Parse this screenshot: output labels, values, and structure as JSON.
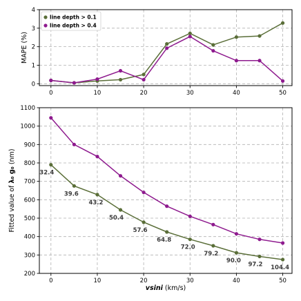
{
  "colors": {
    "green": "#5a6e38",
    "purple": "#8e1a8e"
  },
  "chart_data": [
    {
      "type": "line",
      "xlabel": "",
      "ylabel": "MAPE (%)",
      "xlim": [
        -2.5,
        52
      ],
      "ylim": [
        -0.1,
        4
      ],
      "xticks": [
        0,
        10,
        20,
        30,
        40,
        50
      ],
      "yticks": [
        0,
        1,
        2,
        3,
        4
      ],
      "grid": true,
      "legend_position": "top-left",
      "x": [
        0,
        5,
        10,
        15,
        20,
        25,
        30,
        35,
        40,
        45,
        50
      ],
      "series": [
        {
          "name": "line depth > 0.1",
          "color": "#5a6e38",
          "values": [
            0.18,
            0.05,
            0.15,
            0.22,
            0.5,
            2.15,
            2.72,
            2.1,
            2.52,
            2.58,
            3.28
          ]
        },
        {
          "name": "line depth > 0.4",
          "color": "#8e1a8e",
          "values": [
            0.18,
            0.05,
            0.25,
            0.7,
            0.22,
            1.92,
            2.55,
            1.78,
            1.25,
            1.25,
            0.15
          ]
        }
      ]
    },
    {
      "type": "line",
      "xlabel_bold": "vsini",
      "xlabel_rest": " (km/s)",
      "ylabel_pre": "Fitted value of  ",
      "ylabel_sym": "λ₀ g₀",
      "ylabel_post": " (nm)",
      "xlim": [
        -2.5,
        52
      ],
      "ylim": [
        200,
        1100
      ],
      "xticks": [
        0,
        10,
        20,
        30,
        40,
        50
      ],
      "yticks": [
        200,
        300,
        400,
        500,
        600,
        700,
        800,
        900,
        1000,
        1100
      ],
      "grid": true,
      "x": [
        0,
        5,
        10,
        15,
        20,
        25,
        30,
        35,
        40,
        45,
        50
      ],
      "series": [
        {
          "color": "#8e1a8e",
          "values": [
            1045,
            900,
            835,
            730,
            640,
            565,
            510,
            465,
            415,
            385,
            365
          ]
        },
        {
          "color": "#5a6e38",
          "values": [
            790,
            675,
            628,
            545,
            478,
            425,
            385,
            350,
            312,
            292,
            275
          ]
        }
      ],
      "annotations": [
        "32.4",
        "39.6",
        "43.2",
        "50.4",
        "57.6",
        "64.8",
        "72.0",
        "79.2",
        "90.0",
        "97.2",
        "104.4"
      ]
    }
  ]
}
